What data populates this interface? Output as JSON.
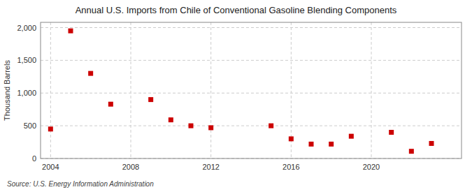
{
  "chart_data": {
    "type": "scatter",
    "title": "Annual U.S. Imports from Chile of Conventional Gasoline Blending Components",
    "ylabel": "Thousand Barrels",
    "annotations": [
      "Source: U.S. Energy Information Administration"
    ],
    "x": [
      2004,
      2005,
      2006,
      2007,
      2009,
      2010,
      2011,
      2012,
      2015,
      2016,
      2017,
      2018,
      2019,
      2021,
      2022,
      2023
    ],
    "values": [
      450,
      1950,
      1300,
      830,
      900,
      590,
      500,
      470,
      500,
      300,
      220,
      220,
      340,
      400,
      110,
      230
    ],
    "color": "#cc0000",
    "marker": "square",
    "xlim": [
      2003.5,
      2024.5
    ],
    "xticks": [
      2004,
      2008,
      2012,
      2016,
      2020
    ],
    "ylim": [
      0,
      2080
    ],
    "yticks": [
      0,
      500,
      {
        "value": 1000,
        "label": "1,000"
      },
      {
        "value": 1500,
        "label": "1,500"
      },
      {
        "value": 2000,
        "label": "2,000"
      }
    ],
    "grid": true
  }
}
